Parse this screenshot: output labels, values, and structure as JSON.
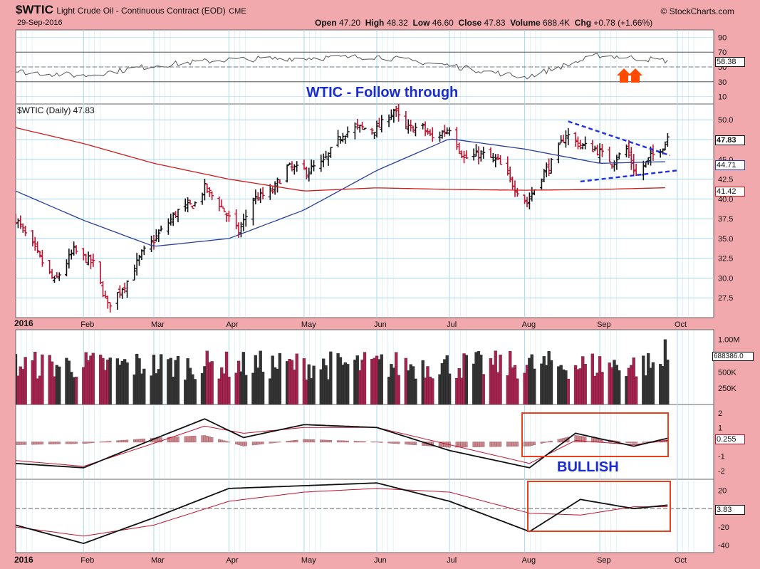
{
  "header": {
    "symbol": "$WTIC",
    "name": "Light Crude Oil - Continuous Contract (EOD)",
    "exchange": "CME",
    "date": "29-Sep-2016",
    "brand": "© StockCharts.com",
    "open_label": "Open",
    "open": "47.20",
    "high_label": "High",
    "high": "48.32",
    "low_label": "Low",
    "low": "46.60",
    "close_label": "Close",
    "close": "47.83",
    "volume_label": "Volume",
    "volume": "688.4K",
    "chg_label": "Chg",
    "chg": "+0.78 (+1.66%)"
  },
  "annotations": {
    "headline": "WTIC - Follow through",
    "bullish": "BULLISH"
  },
  "price_panel": {
    "legend": "$WTIC (Daily) 47.83",
    "tag_close": "47.83",
    "tag_sma50": "44.71",
    "tag_sma200": "41.42"
  },
  "rsi_panel": {
    "tag": "58.38"
  },
  "volume_panel": {
    "tag": "688386.0"
  },
  "macd_panel": {
    "tag": "0.255"
  },
  "pmo_panel": {
    "tag": "3.83"
  },
  "year_label": "2016",
  "colors": {
    "background": "#f1a9ad",
    "panel": "#ffffff",
    "grid": "#a8d8ee",
    "up": "#111111",
    "down": "#c0122d",
    "sma50": "#2b3e9a",
    "sma200": "#d01a1a",
    "trendline": "#1f2ee8",
    "highlight_box": "#e8401c",
    "headline": "#1a2ccf"
  },
  "chart_data": [
    {
      "type": "line",
      "title": "RSI(14)",
      "y_ticks": [
        10,
        30,
        50,
        70,
        90
      ],
      "ylim": [
        0,
        100
      ],
      "x": [
        "2016-01-04",
        "2016-02-01",
        "2016-03-01",
        "2016-04-01",
        "2016-05-02",
        "2016-06-01",
        "2016-07-01",
        "2016-08-01",
        "2016-09-01",
        "2016-09-29"
      ],
      "values": [
        44,
        38,
        52,
        60,
        62,
        64,
        52,
        36,
        66,
        58.38
      ],
      "reference_lines": [
        30,
        70
      ],
      "annotation": "two up arrows near end"
    },
    {
      "type": "bar",
      "subtype": "ohlc",
      "title": "$WTIC (Daily) 47.83",
      "x_ticks": [
        "2016",
        "Feb",
        "Mar",
        "Apr",
        "May",
        "Jun",
        "Jul",
        "Aug",
        "Sep",
        "Oct"
      ],
      "y_ticks": [
        27.5,
        30.0,
        32.5,
        35.0,
        37.5,
        40.0,
        42.5,
        45.0,
        47.5,
        50.0
      ],
      "ylim": [
        25.0,
        52.0
      ],
      "close_keypoints": {
        "dates": [
          "2016-01-04",
          "2016-01-11",
          "2016-01-20",
          "2016-01-28",
          "2016-02-05",
          "2016-02-11",
          "2016-02-19",
          "2016-02-25",
          "2016-03-04",
          "2016-03-11",
          "2016-03-18",
          "2016-03-22",
          "2016-03-28",
          "2016-04-05",
          "2016-04-11",
          "2016-04-15",
          "2016-04-19",
          "2016-04-25",
          "2016-05-03",
          "2016-05-10",
          "2016-05-18",
          "2016-05-24",
          "2016-06-01",
          "2016-06-08",
          "2016-06-13",
          "2016-06-20",
          "2016-06-24",
          "2016-07-01",
          "2016-07-07",
          "2016-07-14",
          "2016-07-21",
          "2016-07-27",
          "2016-08-02",
          "2016-08-08",
          "2016-08-12",
          "2016-08-18",
          "2016-08-24",
          "2016-08-30",
          "2016-09-06",
          "2016-09-12",
          "2016-09-16",
          "2016-09-22",
          "2016-09-28",
          "2016-09-29"
        ],
        "values": [
          37.5,
          34.0,
          29.5,
          33.5,
          31.8,
          26.5,
          29.6,
          33.0,
          35.9,
          38.5,
          39.4,
          41.4,
          39.4,
          35.7,
          40.0,
          40.4,
          41.0,
          44.0,
          43.5,
          44.6,
          48.3,
          49.0,
          48.8,
          51.2,
          48.9,
          49.0,
          47.6,
          49.0,
          45.1,
          45.7,
          44.7,
          41.9,
          39.5,
          43.0,
          44.5,
          48.2,
          46.8,
          46.3,
          44.7,
          46.3,
          43.0,
          45.3,
          47.05,
          47.83
        ]
      },
      "series": [
        {
          "name": "SMA(50)",
          "dates": [
            "2016-01-04",
            "2016-02-01",
            "2016-03-01",
            "2016-04-01",
            "2016-05-02",
            "2016-06-01",
            "2016-07-01",
            "2016-08-01",
            "2016-09-01",
            "2016-09-29"
          ],
          "values": [
            41.0,
            37.3,
            34.0,
            35.0,
            38.6,
            43.6,
            47.6,
            46.3,
            44.5,
            44.71
          ]
        },
        {
          "name": "SMA(200)",
          "dates": [
            "2016-01-04",
            "2016-02-01",
            "2016-03-01",
            "2016-04-01",
            "2016-05-02",
            "2016-06-01",
            "2016-07-01",
            "2016-08-01",
            "2016-09-01",
            "2016-09-29"
          ],
          "values": [
            49.0,
            47.0,
            44.5,
            42.5,
            41.0,
            41.4,
            41.2,
            41.1,
            41.2,
            41.42
          ]
        }
      ],
      "trendlines": [
        {
          "dates": [
            "2016-08-19",
            "2016-09-30"
          ],
          "values": [
            49.8,
            45.5
          ]
        },
        {
          "dates": [
            "2016-08-24",
            "2016-10-03"
          ],
          "values": [
            42.2,
            43.6
          ]
        }
      ],
      "last": {
        "open": 47.2,
        "high": 48.32,
        "low": 46.6,
        "close": 47.83
      }
    },
    {
      "type": "bar",
      "title": "Volume",
      "y_ticks": [
        "250K",
        "500K",
        "750K",
        "1.00M"
      ],
      "ylim": [
        0,
        1000000
      ],
      "last": 688386,
      "approx_range": [
        300000,
        1000000
      ]
    },
    {
      "type": "line",
      "title": "MACD",
      "y_ticks": [
        -2,
        -1,
        1,
        2
      ],
      "ylim": [
        -2.6,
        2.6
      ],
      "x": [
        "2016-01-04",
        "2016-02-01",
        "2016-03-01",
        "2016-03-22",
        "2016-04-07",
        "2016-05-02",
        "2016-06-01",
        "2016-07-01",
        "2016-08-03",
        "2016-08-22",
        "2016-09-15",
        "2016-09-29"
      ],
      "values": [
        -1.5,
        -1.8,
        0.2,
        1.6,
        0.3,
        1.2,
        1.0,
        -0.6,
        -1.8,
        0.6,
        -0.3,
        0.255
      ],
      "signal": [
        -1.3,
        -1.7,
        -0.1,
        1.1,
        0.6,
        1.0,
        1.0,
        -0.2,
        -1.5,
        0.1,
        -0.2,
        0.1
      ],
      "annotation": "BULLISH"
    },
    {
      "type": "line",
      "title": "PMO",
      "y_ticks": [
        -40,
        -20,
        20
      ],
      "ylim": [
        -48,
        32
      ],
      "x": [
        "2016-01-04",
        "2016-02-01",
        "2016-03-01",
        "2016-04-01",
        "2016-05-02",
        "2016-06-01",
        "2016-07-01",
        "2016-08-03",
        "2016-08-24",
        "2016-09-15",
        "2016-09-29"
      ],
      "values": [
        -18,
        -38,
        -10,
        22,
        25,
        28,
        8,
        -25,
        10,
        0,
        3.83
      ],
      "signal": [
        -20,
        -30,
        -18,
        8,
        18,
        22,
        18,
        -5,
        -7,
        2,
        2
      ]
    }
  ]
}
